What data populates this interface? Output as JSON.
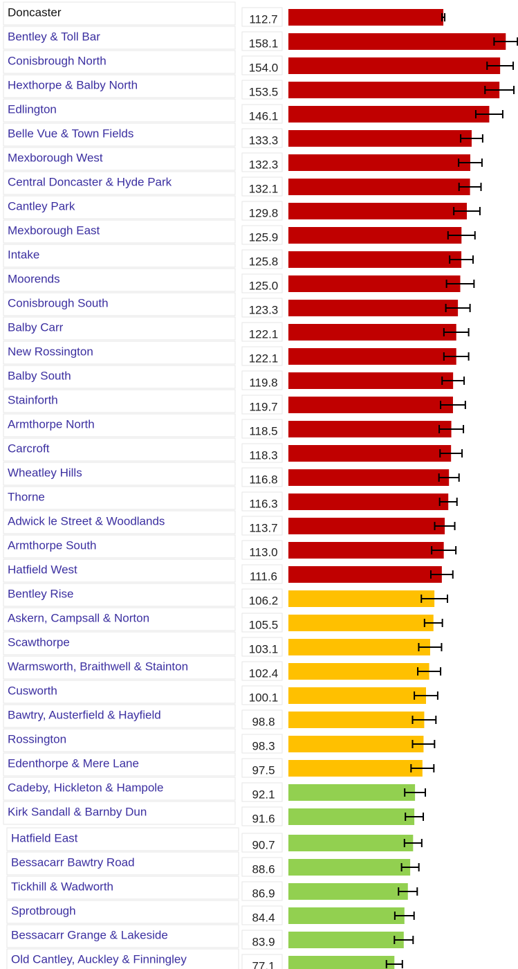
{
  "chart_data": {
    "type": "bar",
    "categories": [
      "Doncaster",
      "Bentley & Toll Bar",
      "Conisbrough North",
      "Hexthorpe & Balby North",
      "Edlington",
      "Belle Vue & Town Fields",
      "Mexborough West",
      "Central Doncaster & Hyde Park",
      "Cantley Park",
      "Mexborough East",
      "Intake",
      "Moorends",
      "Conisbrough South",
      "Balby Carr",
      "New Rossington",
      "Balby South",
      "Stainforth",
      "Armthorpe North",
      "Carcroft",
      "Wheatley Hills",
      "Thorne",
      "Adwick le Street & Woodlands",
      "Armthorpe South",
      "Hatfield West",
      "Bentley Rise",
      "Askern, Campsall & Norton",
      "Scawthorpe",
      "Warmsworth, Braithwell & Stainton",
      "Cusworth",
      "Bawtry, Austerfield & Hayfield",
      "Rossington",
      "Edenthorpe & Mere Lane",
      "Cadeby, Hickleton & Hampole",
      "Kirk Sandall & Barnby Dun",
      "Hatfield East",
      "Bessacarr Bawtry Road",
      "Tickhill & Wadworth",
      "Sprotbrough",
      "Bessacarr Grange & Lakeside",
      "Old Cantley, Auckley & Finningley"
    ],
    "values": [
      112.7,
      158.1,
      154.0,
      153.5,
      146.1,
      133.3,
      132.3,
      132.1,
      129.8,
      125.9,
      125.8,
      125.0,
      123.3,
      122.1,
      122.1,
      119.8,
      119.7,
      118.5,
      118.3,
      116.8,
      116.3,
      113.7,
      113.0,
      111.6,
      106.2,
      105.5,
      103.1,
      102.4,
      100.1,
      98.8,
      98.3,
      97.5,
      92.1,
      91.6,
      90.7,
      88.6,
      86.9,
      84.4,
      83.9,
      77.1
    ],
    "value_labels": [
      "112.7",
      "158.1",
      "154.0",
      "153.5",
      "146.1",
      "133.3",
      "132.3",
      "132.1",
      "129.8",
      "125.9",
      "125.8",
      "125.0",
      "123.3",
      "122.1",
      "122.1",
      "119.8",
      "119.7",
      "118.5",
      "118.3",
      "116.8",
      "116.3",
      "113.7",
      "113.0",
      "111.6",
      "106.2",
      "105.5",
      "103.1",
      "102.4",
      "100.1",
      "98.8",
      "98.3",
      "97.5",
      "92.1",
      "91.6",
      "90.7",
      "88.6",
      "86.9",
      "84.4",
      "83.9",
      "77.1"
    ],
    "errors": [
      1,
      8.5,
      9.5,
      10.5,
      9.8,
      8,
      8.5,
      8,
      9.5,
      9.8,
      8.5,
      10,
      8.8,
      9,
      9,
      8,
      9,
      8.8,
      8,
      7.3,
      6.3,
      7.3,
      8.8,
      8,
      9.5,
      6.5,
      8.3,
      8.3,
      8.5,
      8.5,
      8,
      8.3,
      7.5,
      6.5,
      6.3,
      6.3,
      6.8,
      7,
      6.8,
      5.8
    ],
    "colors": [
      "#c00000",
      "#c00000",
      "#c00000",
      "#c00000",
      "#c00000",
      "#c00000",
      "#c00000",
      "#c00000",
      "#c00000",
      "#c00000",
      "#c00000",
      "#c00000",
      "#c00000",
      "#c00000",
      "#c00000",
      "#c00000",
      "#c00000",
      "#c00000",
      "#c00000",
      "#c00000",
      "#c00000",
      "#c00000",
      "#c00000",
      "#c00000",
      "#ffc000",
      "#ffc000",
      "#ffc000",
      "#ffc000",
      "#ffc000",
      "#ffc000",
      "#ffc000",
      "#ffc000",
      "#92d050",
      "#92d050",
      "#92d050",
      "#92d050",
      "#92d050",
      "#92d050",
      "#92d050",
      "#92d050"
    ],
    "xlim": [
      0,
      167
    ]
  }
}
